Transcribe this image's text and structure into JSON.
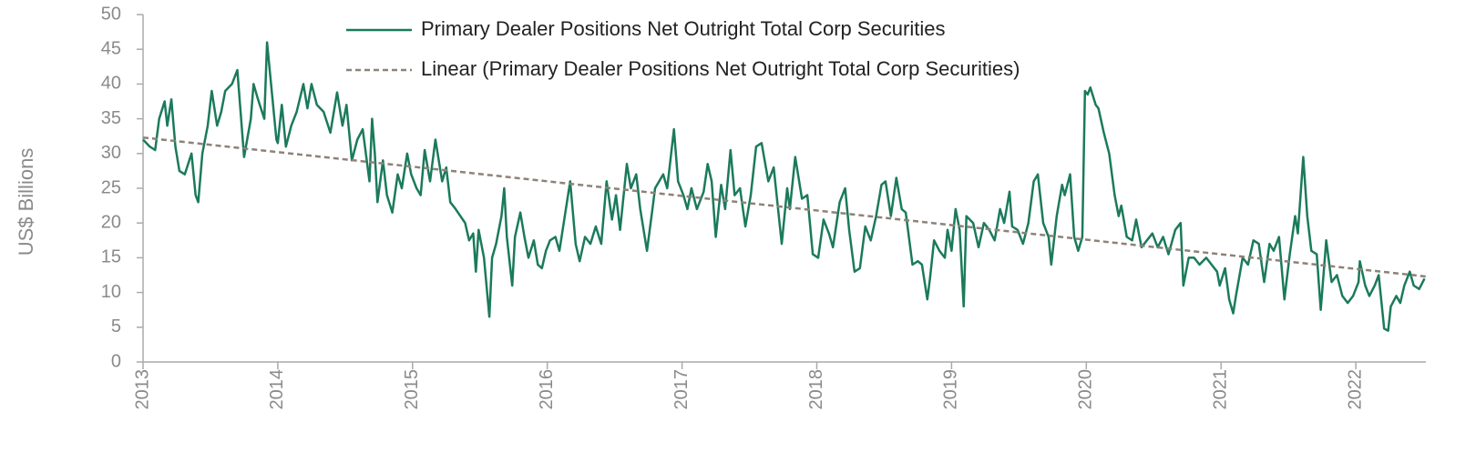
{
  "chart_data": {
    "type": "line",
    "y_label": "US$ Billions",
    "xlim": [
      2013,
      2022.52
    ],
    "xticks": [
      2013,
      2014,
      2015,
      2016,
      2017,
      2018,
      2019,
      2020,
      2021,
      2022
    ],
    "ylim": [
      0,
      50
    ],
    "yticks": [
      0,
      5,
      10,
      15,
      20,
      25,
      30,
      35,
      40,
      45,
      50
    ],
    "legend": "top",
    "series": [
      {
        "name": "Primary Dealer Positions Net Outright Total Corp Securities",
        "color": "#1b7a5c",
        "dash": false,
        "x": [
          2013.0,
          2013.05,
          2013.09,
          2013.12,
          2013.16,
          2013.18,
          2013.21,
          2013.24,
          2013.27,
          2013.31,
          2013.36,
          2013.39,
          2013.41,
          2013.44,
          2013.48,
          2013.51,
          2013.55,
          2013.58,
          2013.61,
          2013.66,
          2013.7,
          2013.75,
          2013.8,
          2013.82,
          2013.85,
          2013.9,
          2013.92,
          2013.95,
          2013.99,
          2014.0,
          2014.03,
          2014.06,
          2014.1,
          2014.14,
          2014.19,
          2014.22,
          2014.25,
          2014.29,
          2014.34,
          2014.39,
          2014.44,
          2014.48,
          2014.51,
          2014.55,
          2014.59,
          2014.63,
          2014.68,
          2014.7,
          2014.72,
          2014.74,
          2014.78,
          2014.81,
          2014.85,
          2014.89,
          2014.92,
          2014.96,
          2014.99,
          2015.03,
          2015.06,
          2015.09,
          2015.13,
          2015.17,
          2015.22,
          2015.25,
          2015.28,
          2015.32,
          2015.39,
          2015.42,
          2015.45,
          2015.47,
          2015.49,
          2015.53,
          2015.57,
          2015.59,
          2015.62,
          2015.66,
          2015.68,
          2015.7,
          2015.74,
          2015.76,
          2015.8,
          2015.83,
          2015.86,
          2015.9,
          2015.93,
          2015.96,
          2015.99,
          2016.02,
          2016.06,
          2016.09,
          2016.13,
          2016.17,
          2016.21,
          2016.24,
          2016.28,
          2016.32,
          2016.36,
          2016.4,
          2016.44,
          2016.48,
          2016.51,
          2016.54,
          2016.59,
          2016.62,
          2016.66,
          2016.69,
          2016.74,
          2016.78,
          2016.8,
          2016.86,
          2016.89,
          2016.94,
          2016.97,
          2017.01,
          2017.04,
          2017.07,
          2017.11,
          2017.16,
          2017.19,
          2017.22,
          2017.25,
          2017.29,
          2017.32,
          2017.36,
          2017.39,
          2017.43,
          2017.47,
          2017.51,
          2017.55,
          2017.59,
          2017.64,
          2017.68,
          2017.74,
          2017.78,
          2017.8,
          2017.84,
          2017.89,
          2017.93,
          2017.97,
          2018.01,
          2018.05,
          2018.09,
          2018.12,
          2018.17,
          2018.21,
          2018.24,
          2018.28,
          2018.32,
          2018.36,
          2018.4,
          2018.44,
          2018.48,
          2018.51,
          2018.55,
          2018.59,
          2018.63,
          2018.66,
          2018.71,
          2018.75,
          2018.78,
          2018.82,
          2018.84,
          2018.87,
          2018.91,
          2018.95,
          2018.97,
          2019.0,
          2019.03,
          2019.06,
          2019.09,
          2019.11,
          2019.16,
          2019.2,
          2019.24,
          2019.28,
          2019.32,
          2019.36,
          2019.39,
          2019.43,
          2019.45,
          2019.49,
          2019.53,
          2019.57,
          2019.61,
          2019.64,
          2019.68,
          2019.72,
          2019.74,
          2019.78,
          2019.82,
          2019.84,
          2019.88,
          2019.91,
          2019.94,
          2019.97,
          2019.99,
          2020.01,
          2020.03,
          2020.07,
          2020.09,
          2020.13,
          2020.17,
          2020.21,
          2020.24,
          2020.26,
          2020.3,
          2020.34,
          2020.37,
          2020.41,
          2020.45,
          2020.49,
          2020.53,
          2020.57,
          2020.61,
          2020.66,
          2020.7,
          2020.72,
          2020.76,
          2020.8,
          2020.84,
          2020.89,
          2020.93,
          2020.97,
          2020.99,
          2021.03,
          2021.06,
          2021.09,
          2021.11,
          2021.16,
          2021.2,
          2021.24,
          2021.28,
          2021.32,
          2021.36,
          2021.39,
          2021.43,
          2021.47,
          2021.51,
          2021.55,
          2021.57,
          2021.61,
          2021.64,
          2021.67,
          2021.71,
          2021.74,
          2021.78,
          2021.82,
          2021.86,
          2021.9,
          2021.94,
          2021.98,
          2022.02,
          2022.03,
          2022.07,
          2022.1,
          2022.14,
          2022.17,
          2022.21,
          2022.24,
          2022.26,
          2022.3,
          2022.33,
          2022.36,
          2022.4,
          2022.43,
          2022.47,
          2022.51
        ],
        "values": [
          32,
          31,
          30.5,
          35,
          37.5,
          34,
          37.8,
          31,
          27.5,
          27,
          30,
          24,
          23,
          30,
          34,
          39,
          34,
          36,
          39,
          40,
          42,
          29.5,
          35,
          40,
          38,
          35,
          46,
          40,
          32,
          31.5,
          37,
          31,
          34,
          36,
          40,
          36.5,
          40,
          37,
          36,
          33,
          38.8,
          34,
          37,
          29,
          32,
          33.5,
          26,
          35,
          30,
          23,
          29,
          24,
          21.5,
          27,
          25,
          30,
          27,
          25,
          24,
          30.5,
          26,
          32,
          26,
          28,
          23,
          22,
          20,
          17.5,
          18.5,
          13,
          19,
          15,
          6.5,
          15,
          17,
          21,
          25,
          18,
          11,
          18,
          21.5,
          18,
          15,
          17.5,
          14,
          13.5,
          16,
          17.5,
          18,
          16,
          21,
          26,
          17,
          14.5,
          18,
          17,
          19.5,
          17,
          26,
          20.5,
          24,
          19,
          28.5,
          25,
          27,
          22,
          16,
          22,
          25,
          27,
          25,
          33.5,
          26,
          24,
          22,
          25,
          22,
          24.5,
          28.5,
          26,
          18,
          25.5,
          22,
          30.5,
          24,
          25,
          19.5,
          24,
          31,
          31.5,
          26,
          28,
          17,
          25,
          22,
          29.5,
          23.5,
          24,
          15.5,
          15,
          20.5,
          18.5,
          16.5,
          23,
          25,
          19,
          13,
          13.5,
          19.5,
          17.5,
          21,
          25.5,
          26,
          21,
          26.5,
          22,
          21.5,
          14,
          14.5,
          14,
          9,
          12,
          17.5,
          16,
          15,
          19,
          16,
          22,
          19,
          8,
          21,
          20,
          16.5,
          20,
          19,
          17.5,
          22,
          20,
          24.5,
          19.5,
          19,
          17,
          20,
          26,
          27,
          20,
          18,
          14,
          21,
          25.5,
          24,
          27,
          18,
          16,
          18,
          39,
          38.5,
          39.5,
          37,
          36.5,
          33,
          30,
          24,
          21,
          22.5,
          18,
          17.5,
          20.5,
          16.5,
          17.5,
          18.5,
          16.5,
          18,
          15.5,
          19,
          20,
          11,
          15,
          15,
          14,
          15,
          14,
          13,
          11,
          13.5,
          9,
          7,
          9.5,
          15,
          14,
          17.5,
          17,
          11.5,
          17,
          16,
          18,
          9,
          15.5,
          21,
          18.5,
          29.5,
          21,
          16,
          15.5,
          7.5,
          17.5,
          11.5,
          12.5,
          9.5,
          8.5,
          9.5,
          11.5,
          14.5,
          11,
          9.5,
          11,
          12.5,
          4.8,
          4.5,
          8,
          9.5,
          8.5,
          11,
          13,
          11,
          10.5,
          12
        ]
      },
      {
        "name": "Linear (Primary Dealer Positions Net Outright Total Corp Securities)",
        "color": "#8c8279",
        "dash": true,
        "x": [
          2013,
          2022.52
        ],
        "values": [
          32.3,
          12.3
        ]
      }
    ]
  }
}
